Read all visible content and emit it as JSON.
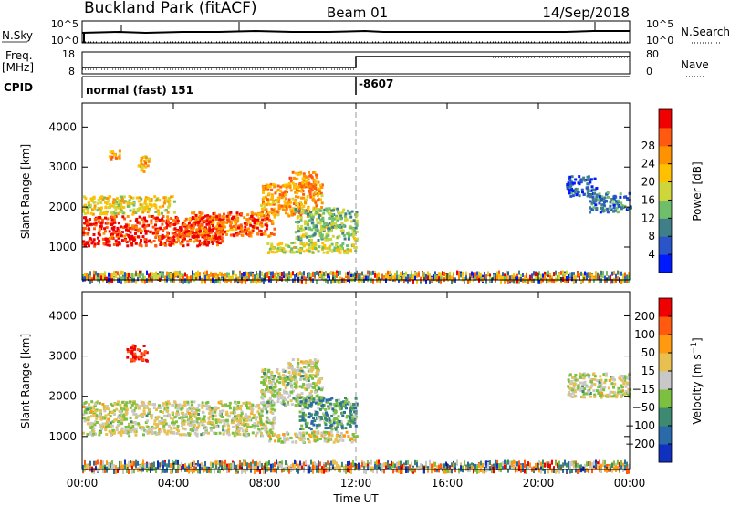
{
  "header": {
    "station": "Buckland Park (fitACF)",
    "beam": "Beam 01",
    "date": "14/Sep/2018"
  },
  "noise_panel": {
    "left_label": "N.Sky",
    "left_ticks": [
      "10^5",
      "10^0"
    ],
    "right_label": "N.Search",
    "right_ticks": [
      "10^5",
      "10^0"
    ]
  },
  "freq_panel": {
    "left_label_1": "Freq.",
    "left_label_2": "[MHz]",
    "left_ticks": [
      "18",
      "8"
    ],
    "right_label": "Nave",
    "right_ticks": [
      "80",
      "0"
    ]
  },
  "cpid_panel": {
    "label": "CPID",
    "mode_1": "normal (fast) 151",
    "mode_2": "-8607"
  },
  "chart_data": [
    {
      "type": "heatmap",
      "name": "power",
      "ylabel": "Slant Range [km]",
      "yticks": [
        1000,
        2000,
        3000,
        4000
      ],
      "ylim": [
        180,
        4600
      ],
      "xlim_hours": [
        0,
        24
      ],
      "colorbar_label": "Power [dB]",
      "colorbar_ticks": [
        4,
        8,
        12,
        16,
        20,
        24,
        28
      ],
      "colorbar_colors": [
        "#0019ff",
        "#2a55c8",
        "#3f7f8a",
        "#6fbf6a",
        "#cfd63a",
        "#ffc000",
        "#ff9200",
        "#ff5a10",
        "#f00000"
      ],
      "regions": [
        {
          "h0": 0.0,
          "h1": 6.2,
          "r0": 1050,
          "r1": 1800,
          "level": 0.9
        },
        {
          "h0": 4.5,
          "h1": 8.4,
          "r0": 1300,
          "r1": 1900,
          "level": 0.8
        },
        {
          "h0": 7.8,
          "h1": 10.5,
          "r0": 1800,
          "r1": 2600,
          "level": 0.7
        },
        {
          "h0": 9.0,
          "h1": 10.3,
          "r0": 2500,
          "r1": 2900,
          "level": 0.72
        },
        {
          "h0": 0.0,
          "h1": 4.0,
          "r0": 1850,
          "r1": 2300,
          "level": 0.55
        },
        {
          "h0": 9.3,
          "h1": 12.0,
          "r0": 1200,
          "r1": 2000,
          "level": 0.4
        },
        {
          "h0": 8.0,
          "h1": 12.0,
          "r0": 880,
          "r1": 1150,
          "level": 0.5
        },
        {
          "h0": 1.1,
          "h1": 1.6,
          "r0": 3200,
          "r1": 3450,
          "level": 0.7
        },
        {
          "h0": 2.4,
          "h1": 2.9,
          "r0": 2900,
          "r1": 3300,
          "level": 0.65
        },
        {
          "h0": 21.2,
          "h1": 22.5,
          "r0": 2300,
          "r1": 2800,
          "level": 0.18
        },
        {
          "h0": 22.2,
          "h1": 24.0,
          "r0": 1900,
          "r1": 2400,
          "level": 0.25
        }
      ],
      "ground_clutter": {
        "r0": 180,
        "r1": 420,
        "h0": 0.0,
        "h1": 24.0
      }
    },
    {
      "type": "heatmap",
      "name": "velocity",
      "ylabel": "Slant Range [km]",
      "xlabel": "Time UT",
      "yticks": [
        1000,
        2000,
        3000,
        4000
      ],
      "ylim": [
        180,
        4600
      ],
      "xlim_hours": [
        0,
        24
      ],
      "xticks": [
        "00:00",
        "04:00",
        "08:00",
        "12:00",
        "16:00",
        "20:00",
        "00:00"
      ],
      "colorbar_label": "Velocity [m s^-1]",
      "colorbar_ticks": [
        "200",
        "100",
        "50",
        "15",
        "-15",
        "-50",
        "-100",
        "-200"
      ],
      "colorbar_colors": [
        "#1030c0",
        "#2a6aa8",
        "#3d8a70",
        "#7cc040",
        "#c8c8c8",
        "#e8c050",
        "#ff9a10",
        "#ff5a10",
        "#f00000"
      ],
      "regions": [
        {
          "h0": 0.0,
          "h1": 8.4,
          "r0": 1050,
          "r1": 1900,
          "level": 0.5
        },
        {
          "h0": 7.8,
          "h1": 10.5,
          "r0": 1800,
          "r1": 2700,
          "level": 0.48
        },
        {
          "h0": 9.0,
          "h1": 10.3,
          "r0": 2500,
          "r1": 2950,
          "level": 0.5
        },
        {
          "h0": 9.5,
          "h1": 12.0,
          "r0": 1200,
          "r1": 2000,
          "level": 0.3
        },
        {
          "h0": 8.0,
          "h1": 12.0,
          "r0": 880,
          "r1": 1150,
          "level": 0.55
        },
        {
          "h0": 1.9,
          "h1": 2.9,
          "r0": 2900,
          "r1": 3300,
          "level": 0.95
        },
        {
          "h0": 21.2,
          "h1": 24.0,
          "r0": 2000,
          "r1": 2600,
          "level": 0.5
        }
      ],
      "ground_clutter": {
        "r0": 180,
        "r1": 420,
        "h0": 0.0,
        "h1": 24.0
      }
    }
  ]
}
